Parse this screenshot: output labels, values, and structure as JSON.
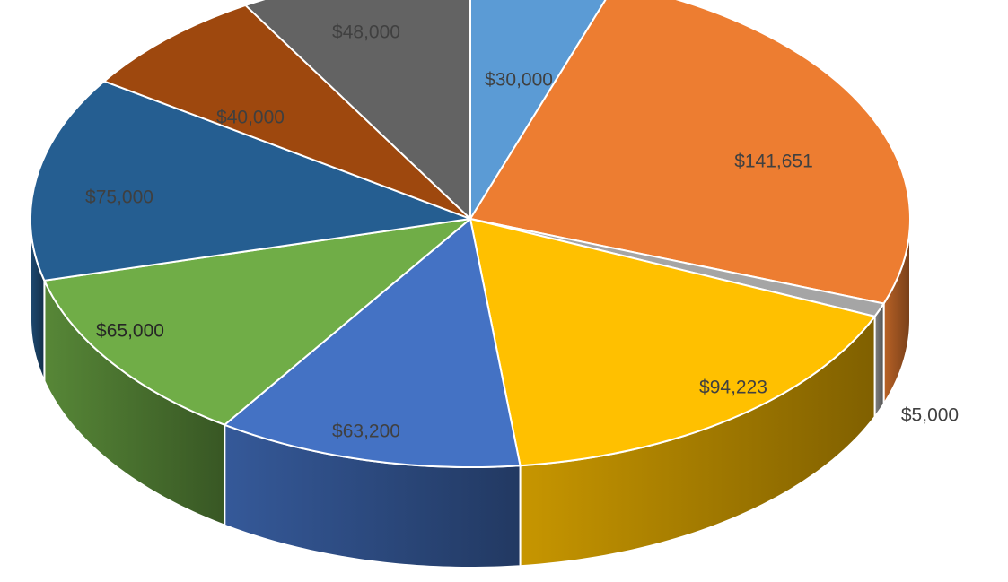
{
  "chart_data": {
    "type": "pie",
    "three_d": true,
    "start": "top",
    "direction": "clockwise",
    "slices": [
      {
        "label": "$30,000",
        "value": 30000,
        "color": "#5b9bd5"
      },
      {
        "label": "$141,651",
        "value": 141651,
        "color": "#ed7d31"
      },
      {
        "label": "$5,000",
        "value": 5000,
        "color": "#a5a5a5"
      },
      {
        "label": "$94,223",
        "value": 94223,
        "color": "#ffc000"
      },
      {
        "label": "$63,200",
        "value": 63200,
        "color": "#4472c4"
      },
      {
        "label": "$65,000",
        "value": 65000,
        "color": "#70ad47"
      },
      {
        "label": "$75,000",
        "value": 75000,
        "color": "#255e91"
      },
      {
        "label": "$40,000",
        "value": 40000,
        "color": "#9e480e"
      },
      {
        "label": "$48,000",
        "value": 48000,
        "color": "#636363"
      }
    ]
  }
}
